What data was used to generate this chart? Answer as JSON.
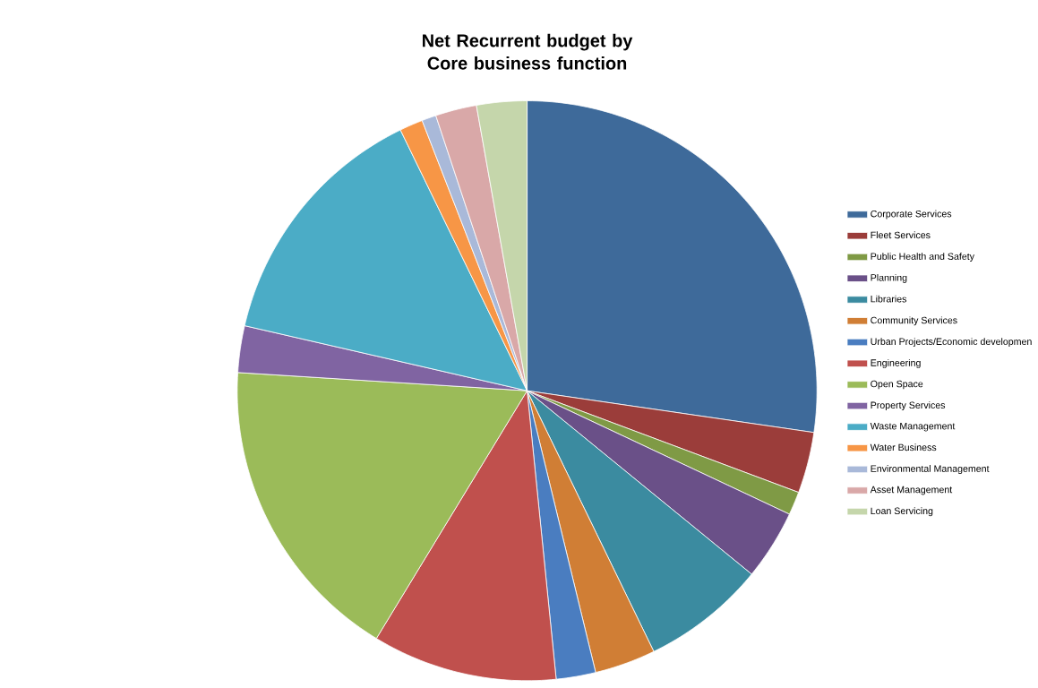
{
  "chart_data": {
    "type": "pie",
    "title": "Net Recurrent budget by Core business function",
    "categories": [
      "Corporate Services",
      "Fleet Services",
      "Public Health and Safety",
      "Planning",
      "Libraries",
      "Community Services",
      "Urban Projects/Economic developmen",
      "Engineering",
      "Open Space",
      "Property Services",
      "Waste Management",
      "Water Business",
      "Environmental Management",
      "Asset Management",
      "Loan Servicing"
    ],
    "values": [
      27.3,
      3.4,
      1.3,
      3.9,
      6.9,
      3.4,
      2.2,
      10.3,
      17.3,
      2.6,
      14.2,
      1.3,
      0.8,
      2.3,
      2.8
    ],
    "colors": [
      "#3E6A9A",
      "#9B3D3A",
      "#7F9A45",
      "#6A5088",
      "#3B8BA0",
      "#D07E35",
      "#4A7DC0",
      "#C0504D",
      "#9BBB59",
      "#8064A2",
      "#4BACC6",
      "#F79646",
      "#A9B9D9",
      "#D9A8A8",
      "#C5D6AB"
    ],
    "legend": "right"
  }
}
